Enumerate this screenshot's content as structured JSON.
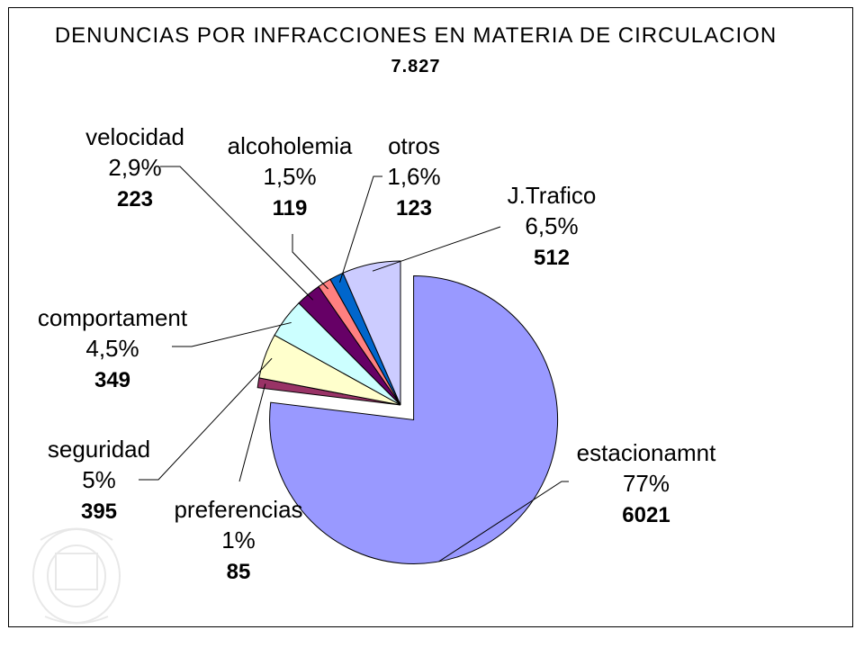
{
  "chart_data": {
    "type": "pie",
    "title": "DENUNCIAS POR INFRACCIONES EN MATERIA DE CIRCULACION",
    "subtitle": "7.827",
    "slices": [
      {
        "label": "estacionamnt",
        "percent": "77%",
        "value": 6021,
        "color": "#9999ff",
        "exploded": true
      },
      {
        "label": "preferencias",
        "percent": "1%",
        "value": 85,
        "color": "#993366",
        "exploded": false
      },
      {
        "label": "seguridad",
        "percent": "5%",
        "value": 395,
        "color": "#ffffcc",
        "exploded": false
      },
      {
        "label": "comportament",
        "percent": "4,5%",
        "value": 349,
        "color": "#ccffff",
        "exploded": false
      },
      {
        "label": "velocidad",
        "percent": "2,9%",
        "value": 223,
        "color": "#660066",
        "exploded": false
      },
      {
        "label": "alcoholemia",
        "percent": "1,5%",
        "value": 119,
        "color": "#ff8080",
        "exploded": false
      },
      {
        "label": "otros",
        "percent": "1,6%",
        "value": 123,
        "color": "#0066cc",
        "exploded": false
      },
      {
        "label": "J.Trafico",
        "percent": "6,5%",
        "value": 512,
        "color": "#ccccff",
        "exploded": false
      }
    ]
  }
}
